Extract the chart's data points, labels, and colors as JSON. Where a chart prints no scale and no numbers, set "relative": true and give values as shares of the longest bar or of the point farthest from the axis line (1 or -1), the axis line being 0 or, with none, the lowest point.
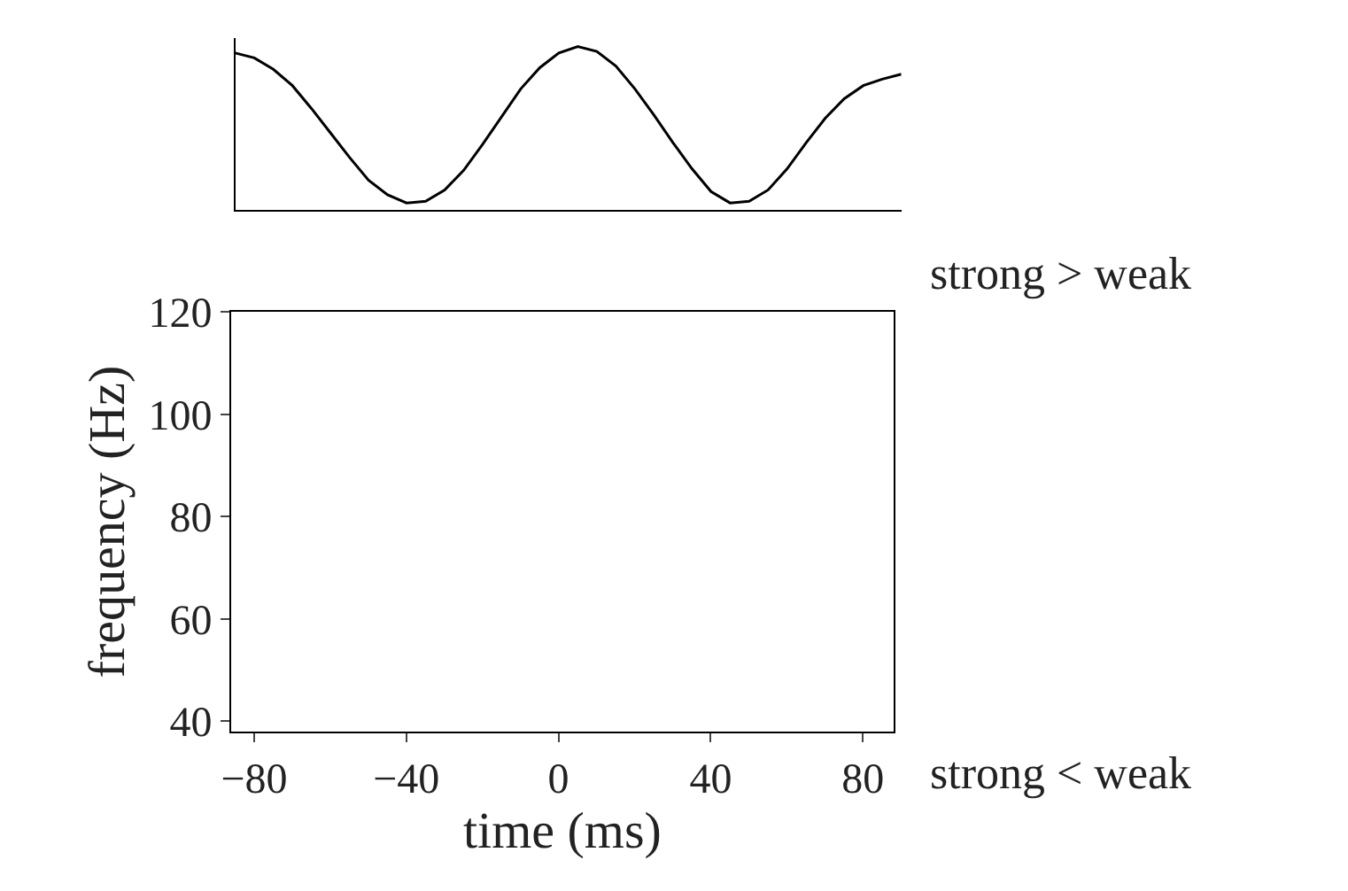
{
  "chart_data": [
    {
      "type": "line",
      "relative": true,
      "tick_labels": false,
      "color": "#000000",
      "categories": [
        null,
        null,
        null,
        null,
        null,
        null,
        null,
        null,
        null,
        null,
        null,
        null,
        null,
        null,
        null,
        null,
        null,
        null,
        null,
        null,
        null,
        null,
        null,
        null,
        null,
        null,
        null,
        null,
        null,
        null,
        null,
        null,
        null,
        null,
        null,
        null
      ],
      "values": [
        0.96,
        0.93,
        0.86,
        0.76,
        0.62,
        0.47,
        0.32,
        0.18,
        0.09,
        0.04,
        0.05,
        0.12,
        0.24,
        0.4,
        0.57,
        0.74,
        0.87,
        0.96,
        1.0,
        0.97,
        0.88,
        0.74,
        0.58,
        0.41,
        0.25,
        0.11,
        0.04,
        0.05,
        0.12,
        0.25,
        0.41,
        0.56,
        0.68,
        0.76,
        0.8,
        0.83
      ]
    },
    {
      "type": "heatmap",
      "xlabel": "time (ms)",
      "ylabel": "frequency (Hz)",
      "xlim": [
        -86,
        88
      ],
      "xticks": [
        -80,
        -40,
        0,
        40,
        80
      ],
      "ylim": [
        38,
        120
      ],
      "yticks": [
        40,
        60,
        80,
        100,
        120
      ],
      "annotations": [
        "strong > weak",
        "strong < weak"
      ]
    }
  ]
}
